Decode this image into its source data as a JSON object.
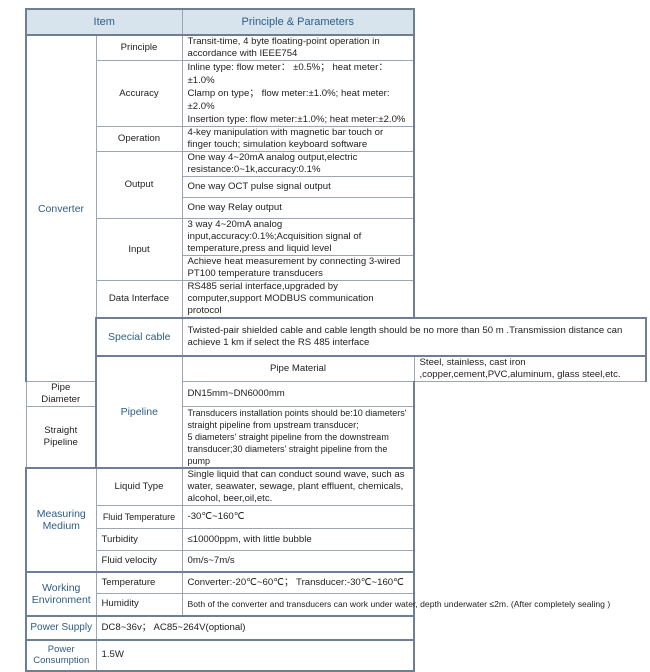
{
  "header": {
    "item": "Item",
    "params": "Principle & Parameters"
  },
  "converter": {
    "label": "Converter",
    "principle": {
      "label": "Principle",
      "value": "Transit-time, 4 byte floating-point operation in accordance with IEEE754"
    },
    "accuracy": {
      "label": "Accuracy",
      "values": [
        "Inline type: flow meter： ±0.5%； heat meter： ±1.0%",
        "Clamp on type； flow meter:±1.0%; heat meter:±2.0%",
        "Insertion type: flow meter:±1.0%; heat meter:±2.0%"
      ]
    },
    "operation": {
      "label": "Operation",
      "value": "4-key manipulation with magnetic bar touch or finger touch; simulation keyboard software"
    },
    "output": {
      "label": "Output",
      "values": [
        "One way 4~20mA analog output,electric resistance:0~1k,accuracy:0.1%",
        "One way OCT pulse signal output",
        "One way Relay output"
      ]
    },
    "input": {
      "label": "Input",
      "values": [
        "3 way 4~20mA analog input,accuracy:0.1%;Acquisition signal of temperature,press and liquid level",
        "Achieve heat measurement by connecting 3-wired PT100 temperature transducers"
      ]
    },
    "data_interface": {
      "label": "Data Interface",
      "value": "RS485 serial interface,upgraded by computer,support MODBUS communication protocol"
    }
  },
  "special_cable": {
    "label": "Special cable",
    "value": "Twisted-pair shielded cable and cable length should be no more than 50 m .Transmission distance can achieve 1 km if select the RS 485 interface"
  },
  "pipeline": {
    "label": "Pipeline",
    "material": {
      "label": "Pipe Material",
      "value": "Steel, stainless, cast iron ,copper,cement,PVC,aluminum, glass steel,etc."
    },
    "diameter": {
      "label": "Pipe Diameter",
      "value": "DN15mm~DN6000mm"
    },
    "straight": {
      "label": "Straight Pipeline",
      "values": [
        "Transducers installation points should be:10 diameters' straight pipeline from upstream transducer;",
        "5 diameters' straight pipeline from the downstream transducer;30 diameters' straight pipeline from the pump"
      ]
    }
  },
  "medium": {
    "label": "Measuring Medium",
    "liquid": {
      "label": "Liquid Type",
      "value": "Single liquid that can conduct sound wave, such as water, seawater, sewage, plant effluent, chemicals, alcohol, beer,oil,etc."
    },
    "temperature": {
      "label": "Fluid Temperature",
      "value": "-30℃~160℃"
    },
    "turbidity": {
      "label": "Turbidity",
      "value": "≤10000ppm, with little bubble"
    },
    "velocity": {
      "label": "Fluid velocity",
      "value": "0m/s~7m/s"
    }
  },
  "environment": {
    "label": "Working Environment",
    "temperature": {
      "label": "Temperature",
      "value": "Converter:-20℃~60℃； Transducer:-30℃~160℃"
    },
    "humidity": {
      "label": "Humidity",
      "value": "Both of the converter and transducers can work under water, depth underwater ≤2m. (After completely sealing )"
    }
  },
  "power_supply": {
    "label": "Power Supply",
    "value": "DC8~36v； AC85~264V(optional)"
  },
  "power_consumption": {
    "label": "Power Consumption",
    "value": "1.5W"
  }
}
